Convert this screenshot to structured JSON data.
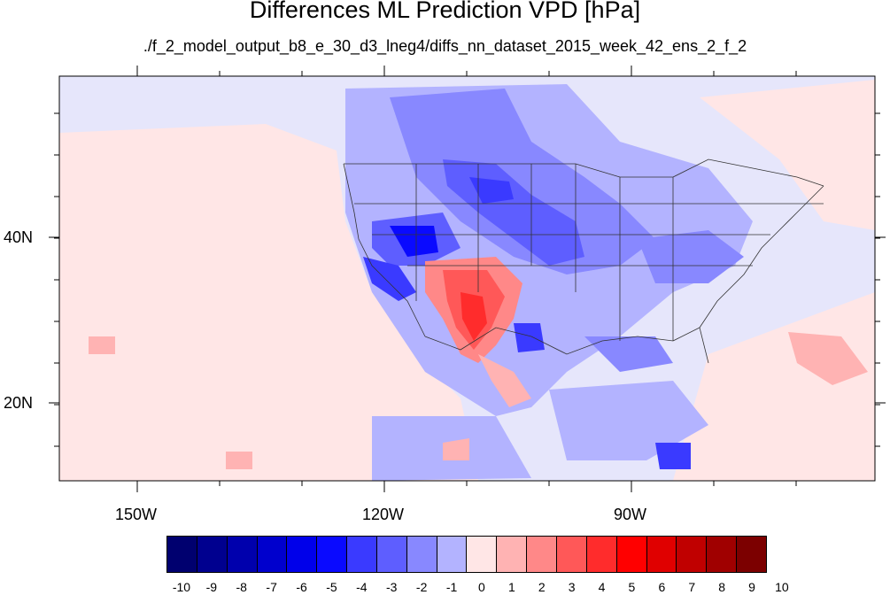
{
  "title": "Differences ML Prediction VPD [hPa]",
  "subtitle": "./f_2_model_output_b8_e_30_d3_lneg4/diffs_nn_dataset_2015_week_42_ens_2_f_2",
  "map": {
    "variable": "VPD difference",
    "units": "hPa",
    "lon_labels": [
      "150W",
      "120W",
      "90W"
    ],
    "lat_labels": [
      "40N",
      "20N"
    ]
  },
  "colorbar": {
    "labels": [
      "-10",
      "-9",
      "-8",
      "-7",
      "-6",
      "-5",
      "-4",
      "-3",
      "-2",
      "-1",
      "0",
      "1",
      "2",
      "3",
      "4",
      "5",
      "6",
      "7",
      "8",
      "9",
      "10"
    ],
    "colors": [
      "#00006f",
      "#00008f",
      "#0000ad",
      "#0000cd",
      "#0000ea",
      "#0a0aff",
      "#3a3aff",
      "#5e5eff",
      "#8888ff",
      "#b3b3ff",
      "#e6e6fb",
      "#ffe6e6",
      "#ffb3b3",
      "#ff8888",
      "#ff5858",
      "#ff2c2c",
      "#ff0000",
      "#e00000",
      "#c00000",
      "#a00000",
      "#7c0000"
    ]
  }
}
